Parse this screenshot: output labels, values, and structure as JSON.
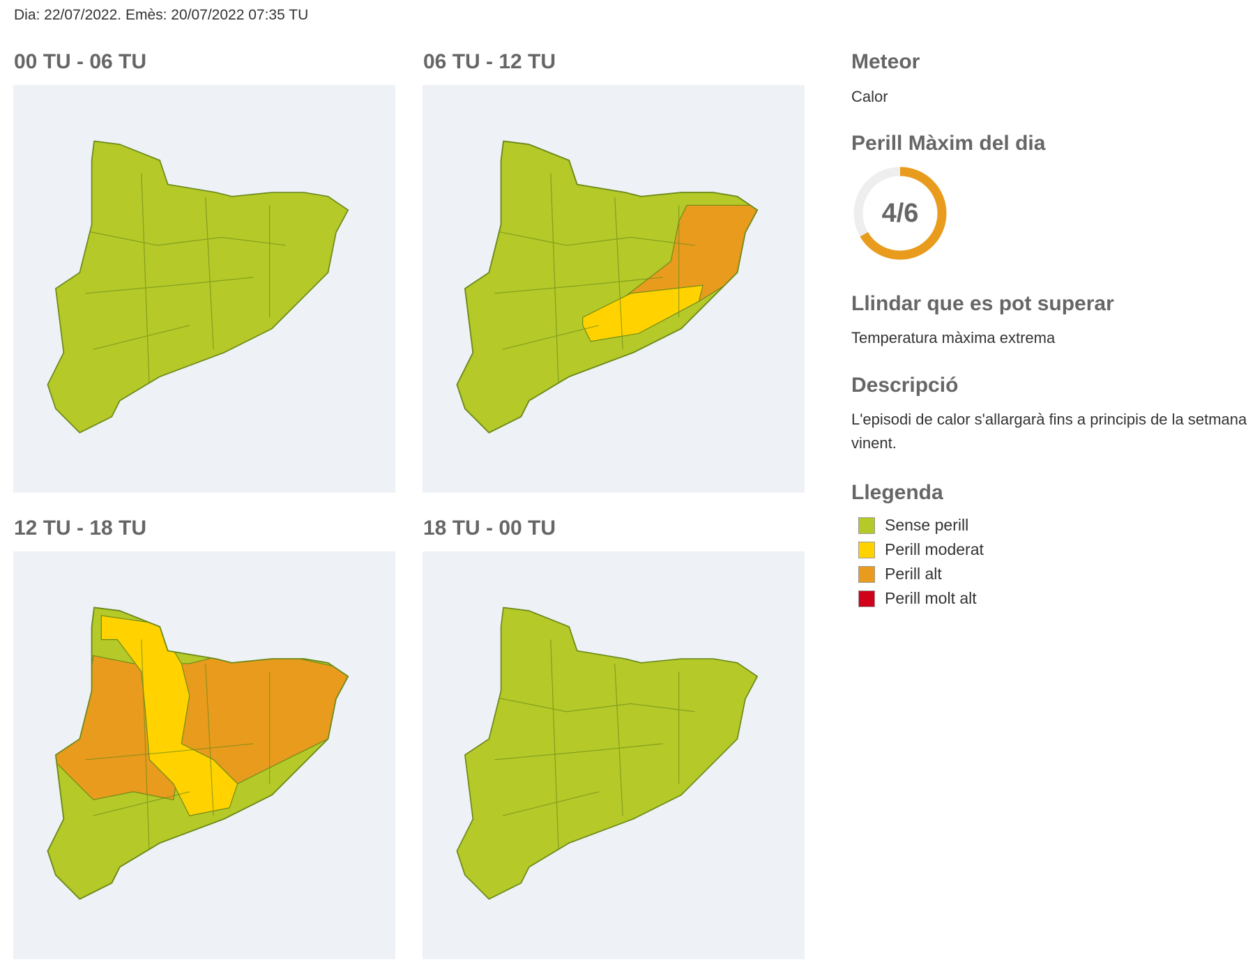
{
  "header": "Dia: 22/07/2022. Emès: 20/07/2022 07:35 TU",
  "panels": [
    {
      "title": "00 TU - 06 TU"
    },
    {
      "title": "06 TU - 12 TU"
    },
    {
      "title": "12 TU - 18 TU"
    },
    {
      "title": "18 TU - 00 TU"
    }
  ],
  "sidebar": {
    "meteor_title": "Meteor",
    "meteor": "Calor",
    "max_title": "Perill Màxim del dia",
    "max_level": "4/6",
    "threshold_title": "Llindar que es pot superar",
    "threshold": "Temperatura màxima extrema",
    "description_title": "Descripció",
    "description": "L'episodi de calor s'allargarà fins a principis de la setmana vinent.",
    "legend_title": "Llegenda",
    "legend": [
      {
        "label": "Sense perill",
        "color": "#b5c928"
      },
      {
        "label": "Perill moderat",
        "color": "#ffd200"
      },
      {
        "label": "Perill alt",
        "color": "#e89b1c"
      },
      {
        "label": "Perill molt alt",
        "color": "#d0021b"
      }
    ]
  }
}
